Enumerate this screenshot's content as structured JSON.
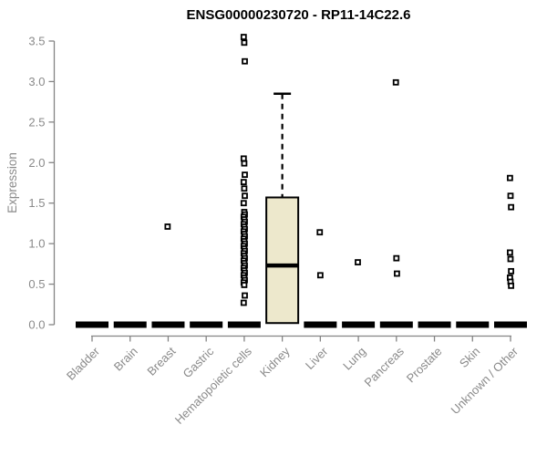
{
  "chart_data": {
    "type": "boxplot",
    "title": "ENSG00000230720 - RP11-14C22.6",
    "xlabel": "",
    "ylabel": "Expression",
    "ylim": [
      0,
      3.5
    ],
    "ytick_values": [
      0.0,
      0.5,
      1.0,
      1.5,
      2.0,
      2.5,
      3.0,
      3.5
    ],
    "ytick_labels": [
      "0.0",
      "0.5",
      "1.0",
      "1.5",
      "2.0",
      "2.5",
      "3.0",
      "3.5"
    ],
    "grid": false,
    "legend": false,
    "categories": [
      "Bladder",
      "Brain",
      "Breast",
      "Gastric",
      "Hematopoietic cells",
      "Kidney",
      "Liver",
      "Lung",
      "Pancreas",
      "Prostate",
      "Skin",
      "Unknown / Other"
    ],
    "boxes": [
      {
        "category": "Bladder",
        "lo": 0,
        "q1": 0,
        "median": 0,
        "q3": 0,
        "hi": 0,
        "outliers": []
      },
      {
        "category": "Brain",
        "lo": 0,
        "q1": 0,
        "median": 0,
        "q3": 0,
        "hi": 0,
        "outliers": []
      },
      {
        "category": "Breast",
        "lo": 0,
        "q1": 0,
        "median": 0,
        "q3": 0,
        "hi": 0,
        "outliers": [
          1.21
        ]
      },
      {
        "category": "Gastric",
        "lo": 0,
        "q1": 0,
        "median": 0,
        "q3": 0,
        "hi": 0,
        "outliers": []
      },
      {
        "category": "Hematopoietic cells",
        "lo": 0,
        "q1": 0,
        "median": 0,
        "q3": 0,
        "hi": 0,
        "outliers": [
          3.55,
          3.48,
          3.25,
          2.05,
          1.99,
          1.85,
          1.76,
          1.68,
          1.59,
          1.5,
          1.39,
          1.36,
          1.33,
          1.3,
          1.27,
          1.24,
          1.21,
          1.18,
          1.15,
          1.12,
          1.09,
          1.06,
          1.03,
          1.0,
          0.97,
          0.94,
          0.91,
          0.88,
          0.85,
          0.82,
          0.79,
          0.76,
          0.73,
          0.7,
          0.67,
          0.64,
          0.61,
          0.58,
          0.55,
          0.52,
          0.49,
          0.36,
          0.27
        ]
      },
      {
        "category": "Kidney",
        "lo": 0.02,
        "q1": 0.02,
        "median": 0.73,
        "q3": 1.57,
        "hi": 2.85,
        "outliers": []
      },
      {
        "category": "Liver",
        "lo": 0,
        "q1": 0,
        "median": 0,
        "q3": 0,
        "hi": 0,
        "outliers": [
          1.14,
          0.61
        ]
      },
      {
        "category": "Lung",
        "lo": 0,
        "q1": 0,
        "median": 0,
        "q3": 0,
        "hi": 0,
        "outliers": [
          0.77
        ]
      },
      {
        "category": "Pancreas",
        "lo": 0,
        "q1": 0,
        "median": 0,
        "q3": 0,
        "hi": 0,
        "outliers": [
          2.99,
          0.82,
          0.63
        ]
      },
      {
        "category": "Prostate",
        "lo": 0,
        "q1": 0,
        "median": 0,
        "q3": 0,
        "hi": 0,
        "outliers": []
      },
      {
        "category": "Skin",
        "lo": 0,
        "q1": 0,
        "median": 0,
        "q3": 0,
        "hi": 0,
        "outliers": []
      },
      {
        "category": "Unknown / Other",
        "lo": 0,
        "q1": 0,
        "median": 0,
        "q3": 0,
        "hi": 0,
        "outliers": [
          1.81,
          1.59,
          1.45,
          0.89,
          0.81,
          0.66,
          0.58,
          0.53,
          0.48
        ]
      }
    ],
    "colors": {
      "box_fill": "#EDE8CC",
      "box_stroke": "#000000",
      "median": "#000000",
      "whisker": "#000000",
      "marker": "#000000",
      "axis": "#848484",
      "axis_text": "#8A8A8A",
      "title_text": "#000000",
      "background": "#FFFFFF"
    }
  }
}
